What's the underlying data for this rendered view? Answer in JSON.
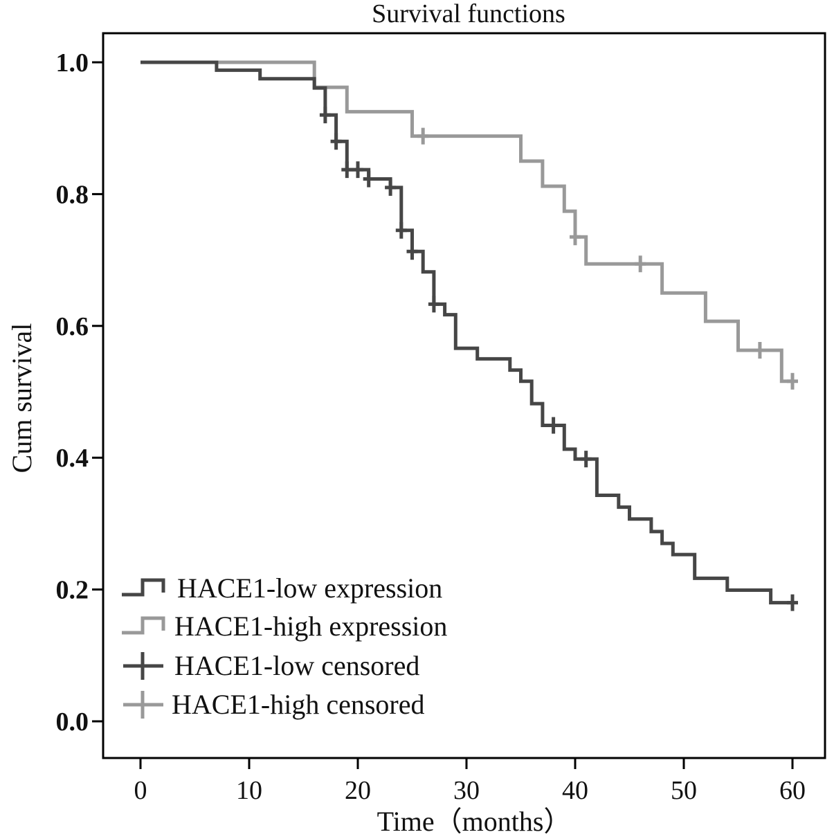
{
  "chart_data": {
    "type": "line",
    "subtype": "kaplan-meier step",
    "title": "Survival functions",
    "xlabel": "Time（months）",
    "ylabel": "Cum survival",
    "xlim": [
      -3.5,
      63
    ],
    "ylim": [
      -0.055,
      1.045
    ],
    "xticks": [
      0,
      10,
      20,
      30,
      40,
      50,
      60
    ],
    "xtick_labels": [
      "0",
      "10",
      "20",
      "30",
      "40",
      "50",
      "60"
    ],
    "yticks": [
      0.0,
      0.2,
      0.4,
      0.6,
      0.8,
      1.0
    ],
    "ytick_labels": [
      "0.0",
      "0.2",
      "0.4",
      "0.6",
      "0.8",
      "1.0"
    ],
    "grid": false,
    "legend_position": "bottom-left",
    "legend": [
      "HACE1-low expression",
      "HACE1-high expression",
      "HACE1-low censored",
      "HACE1-high censored"
    ],
    "series": [
      {
        "name": "HACE1-low expression",
        "color": "#464646",
        "steps": [
          [
            0,
            1.0
          ],
          [
            7,
            0.988
          ],
          [
            11,
            0.975
          ],
          [
            16,
            0.961
          ],
          [
            17,
            0.92
          ],
          [
            18,
            0.88
          ],
          [
            19,
            0.837
          ],
          [
            21,
            0.823
          ],
          [
            23,
            0.81
          ],
          [
            24,
            0.745
          ],
          [
            25,
            0.713
          ],
          [
            26,
            0.682
          ],
          [
            27,
            0.633
          ],
          [
            28,
            0.617
          ],
          [
            29,
            0.566
          ],
          [
            31,
            0.55
          ],
          [
            34,
            0.533
          ],
          [
            35,
            0.516
          ],
          [
            36,
            0.482
          ],
          [
            37,
            0.449
          ],
          [
            39,
            0.413
          ],
          [
            40,
            0.398
          ],
          [
            42,
            0.343
          ],
          [
            44,
            0.325
          ],
          [
            45,
            0.307
          ],
          [
            47,
            0.288
          ],
          [
            48,
            0.27
          ],
          [
            49,
            0.253
          ],
          [
            51,
            0.217
          ],
          [
            54,
            0.199
          ],
          [
            58,
            0.18
          ],
          [
            60,
            0.18
          ]
        ],
        "censored": [
          17,
          18,
          19,
          20,
          21,
          23,
          24,
          25,
          27,
          38,
          41,
          60
        ]
      },
      {
        "name": "HACE1-high expression",
        "color": "#999999",
        "steps": [
          [
            0,
            1.0
          ],
          [
            16,
            0.962
          ],
          [
            19,
            0.925
          ],
          [
            25,
            0.888
          ],
          [
            35,
            0.85
          ],
          [
            37,
            0.812
          ],
          [
            39,
            0.774
          ],
          [
            40,
            0.735
          ],
          [
            41,
            0.694
          ],
          [
            48,
            0.65
          ],
          [
            52,
            0.607
          ],
          [
            55,
            0.563
          ],
          [
            59,
            0.516
          ],
          [
            60,
            0.516
          ]
        ],
        "censored": [
          26,
          40,
          46,
          57,
          60
        ]
      }
    ]
  }
}
